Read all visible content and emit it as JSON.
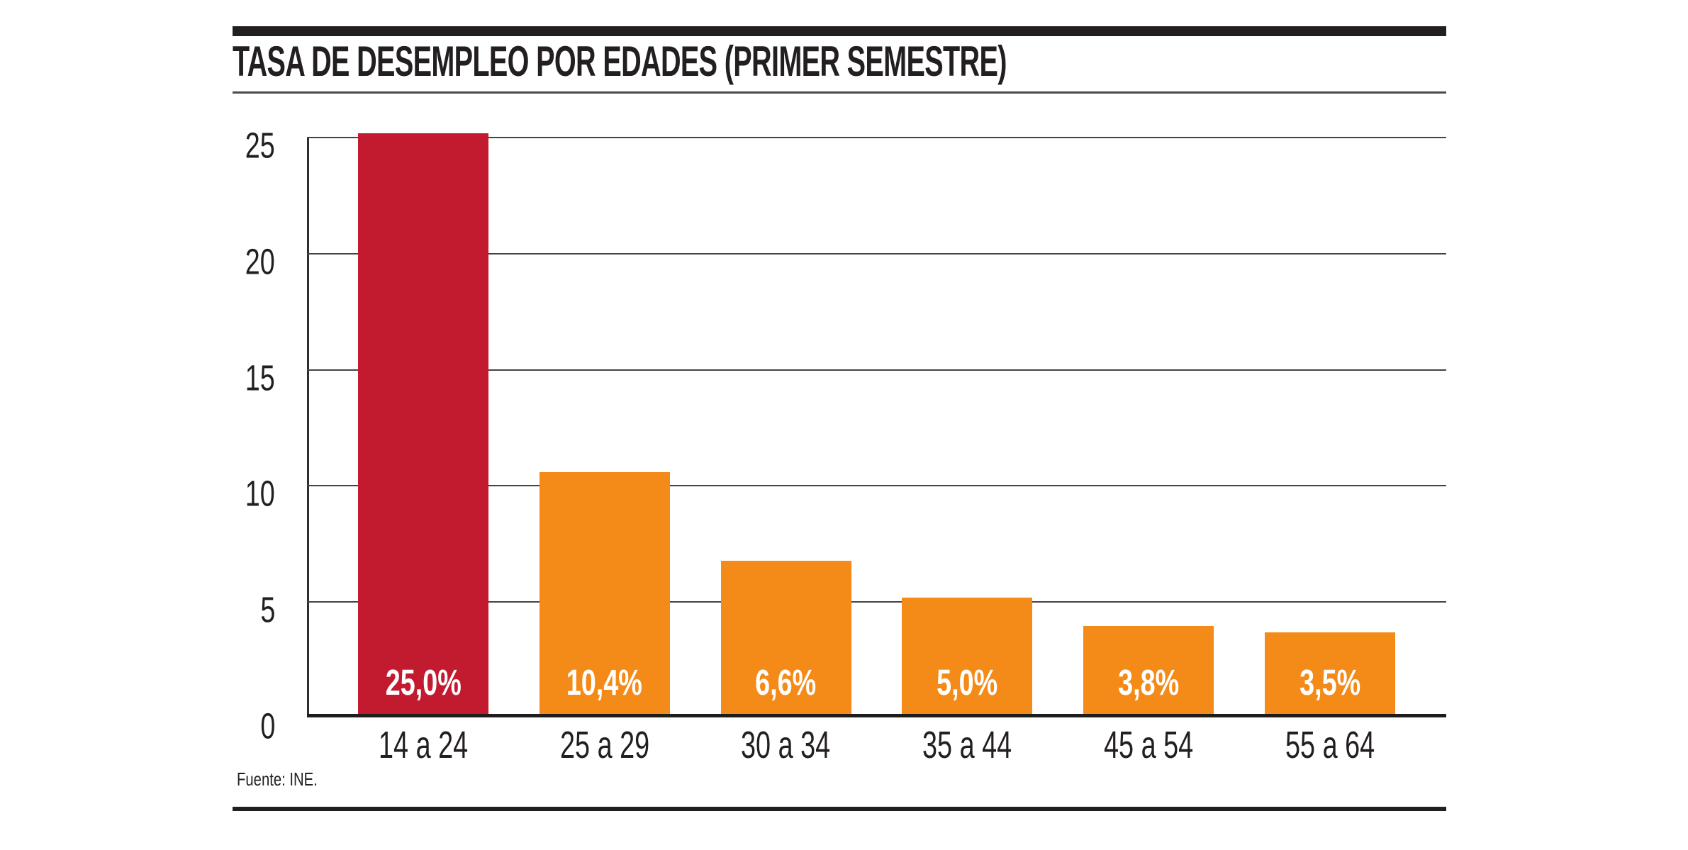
{
  "header": {
    "title": "TASA DE DESEMPLEO POR EDADES (PRIMER SEMESTRE)"
  },
  "source": "Fuente: INE.",
  "colors": {
    "highlight_bar": "#c21b2f",
    "default_bar": "#f48b18",
    "text": "#231f20",
    "grid": "#434345",
    "axis": "#1e1c1c"
  },
  "chart_data": {
    "type": "bar",
    "title": "TASA DE DESEMPLEO POR EDADES (PRIMER SEMESTRE)",
    "categories": [
      "14 a 24",
      "25 a 29",
      "30 a 34",
      "35 a 44",
      "45 a 54",
      "55 a 64"
    ],
    "values": [
      25.0,
      10.4,
      6.6,
      5.0,
      3.8,
      3.5
    ],
    "value_labels": [
      "25,0%",
      "10,4%",
      "6,6%",
      "5,0%",
      "3,8%",
      "3,5%"
    ],
    "bar_colors": [
      "#c21b2f",
      "#f48b18",
      "#f48b18",
      "#f48b18",
      "#f48b18",
      "#f48b18"
    ],
    "xlabel": "",
    "ylabel": "",
    "ylim": [
      0,
      25
    ],
    "yticks": [
      0,
      5,
      10,
      15,
      20,
      25
    ],
    "grid": true,
    "legend": false,
    "source": "Fuente: INE."
  }
}
